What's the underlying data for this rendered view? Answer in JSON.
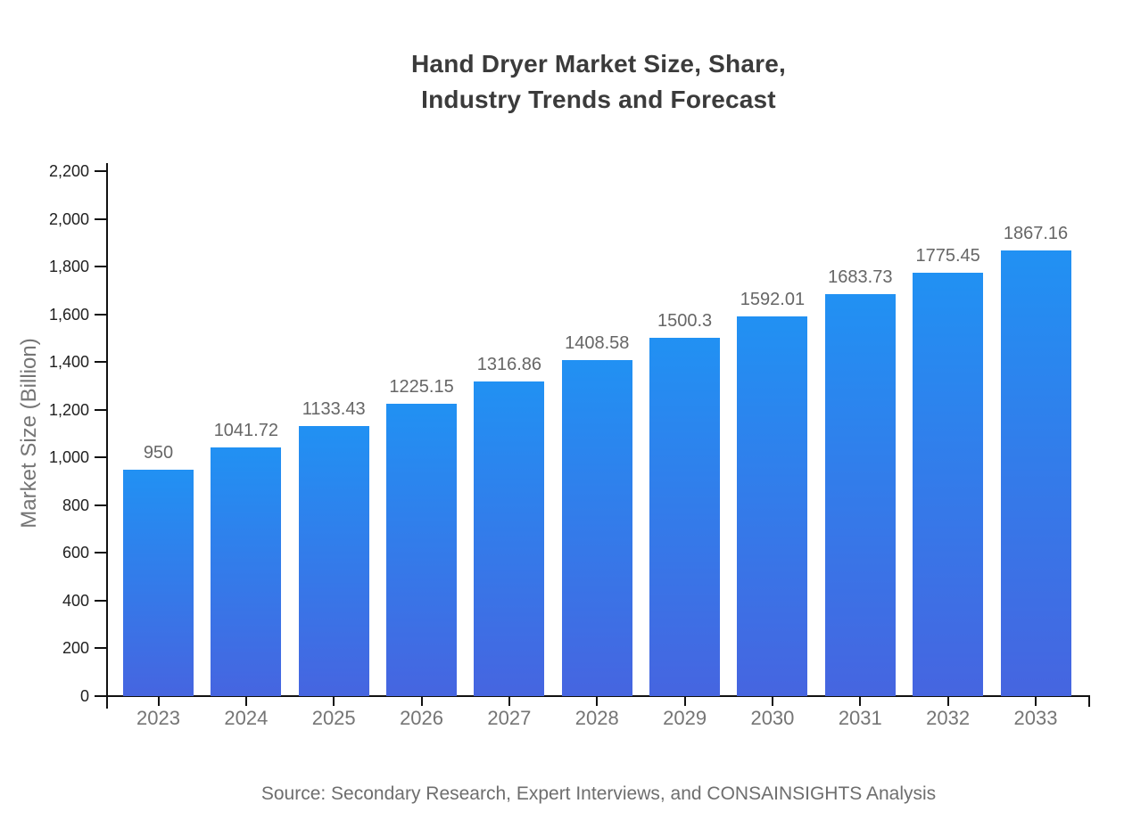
{
  "chart_data": {
    "type": "bar",
    "title_lines": [
      "Hand Dryer Market Size, Share,",
      "Industry Trends and Forecast"
    ],
    "ylabel": "Market Size (Billion)",
    "xlabel": "",
    "categories": [
      "2023",
      "2024",
      "2025",
      "2026",
      "2027",
      "2028",
      "2029",
      "2030",
      "2031",
      "2032",
      "2033"
    ],
    "values": [
      950,
      1041.72,
      1133.43,
      1225.15,
      1316.86,
      1408.58,
      1500.3,
      1592.01,
      1683.73,
      1775.45,
      1867.16
    ],
    "value_labels": [
      "950",
      "1041.72",
      "1133.43",
      "1225.15",
      "1316.86",
      "1408.58",
      "1500.3",
      "1592.01",
      "1683.73",
      "1775.45",
      "1867.16"
    ],
    "ylim": [
      0,
      2200
    ],
    "ytick_step": 200,
    "ytick_labels": [
      "0",
      "200",
      "400",
      "600",
      "800",
      "1,000",
      "1,200",
      "1,400",
      "1,600",
      "1,800",
      "2,000",
      "2,200"
    ],
    "grid": false,
    "legend": "none",
    "colors": {
      "bar_gradient_top": "#2191f3",
      "bar_gradient_bottom": "#4665e0",
      "axis": "#111111",
      "title_text": "#3b3b3b",
      "value_label_text": "#666666",
      "xtick_text": "#757575",
      "ytick_text": "#212121",
      "y_axis_title_text": "#757575",
      "source_text": "#6e6e6e"
    }
  },
  "footer": {
    "source": "Source: Secondary Research, Expert Interviews, and CONSAINSIGHTS Analysis"
  }
}
